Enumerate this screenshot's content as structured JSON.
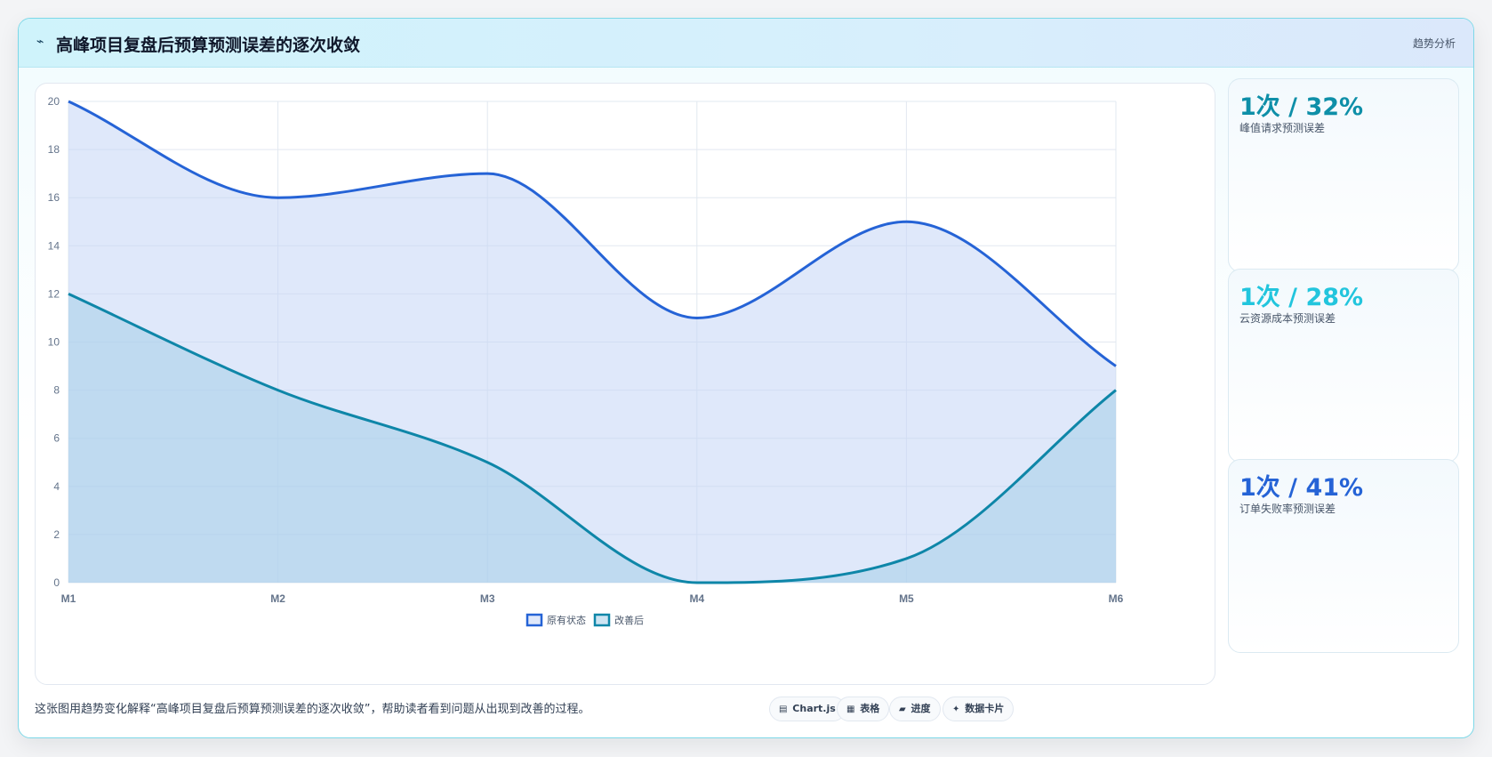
{
  "header": {
    "icon": "bolt-icon",
    "title": "高峰项目复盘后预算预测误差的逐次收敛",
    "tag": "趋势分析"
  },
  "stats": [
    {
      "value": "1次 / 32%",
      "label": "峰值请求预测误差",
      "color": "#0e8fa8"
    },
    {
      "value": "1次 / 28%",
      "label": "云资源成本预测误差",
      "color": "#22c5dd"
    },
    {
      "value": "1次 / 41%",
      "label": "订单失败率预测误差",
      "color": "#2563d6"
    }
  ],
  "footer": {
    "text": "这张图用趋势变化解释“高峰项目复盘后预算预测误差的逐次收敛”，帮助读者看到问题从出现到改善的过程。",
    "chips": [
      {
        "icon": "chart-icon",
        "glyph": "▤",
        "label": "Chart.js"
      },
      {
        "icon": "table-icon",
        "glyph": "▦",
        "label": "表格"
      },
      {
        "icon": "progress-icon",
        "glyph": "▰",
        "label": "进度"
      },
      {
        "icon": "sparkle-icon",
        "glyph": "✦",
        "label": "数据卡片"
      }
    ]
  },
  "chart_data": {
    "type": "area",
    "categories": [
      "M1",
      "M2",
      "M3",
      "M4",
      "M5",
      "M6"
    ],
    "ylim": [
      0,
      20
    ],
    "yticks": [
      0,
      2,
      4,
      6,
      8,
      10,
      12,
      14,
      16,
      18,
      20
    ],
    "grid": true,
    "legend_position": "bottom",
    "series": [
      {
        "name": "原有状态",
        "values": [
          20,
          16,
          17,
          11,
          15,
          9
        ],
        "color": "#2563d6",
        "fill": "rgba(196,214,246,0.55)"
      },
      {
        "name": "改善后",
        "values": [
          12,
          8,
          5,
          0,
          1,
          8
        ],
        "color": "#0e86a8",
        "fill": "rgba(164,206,232,0.55)"
      }
    ]
  }
}
